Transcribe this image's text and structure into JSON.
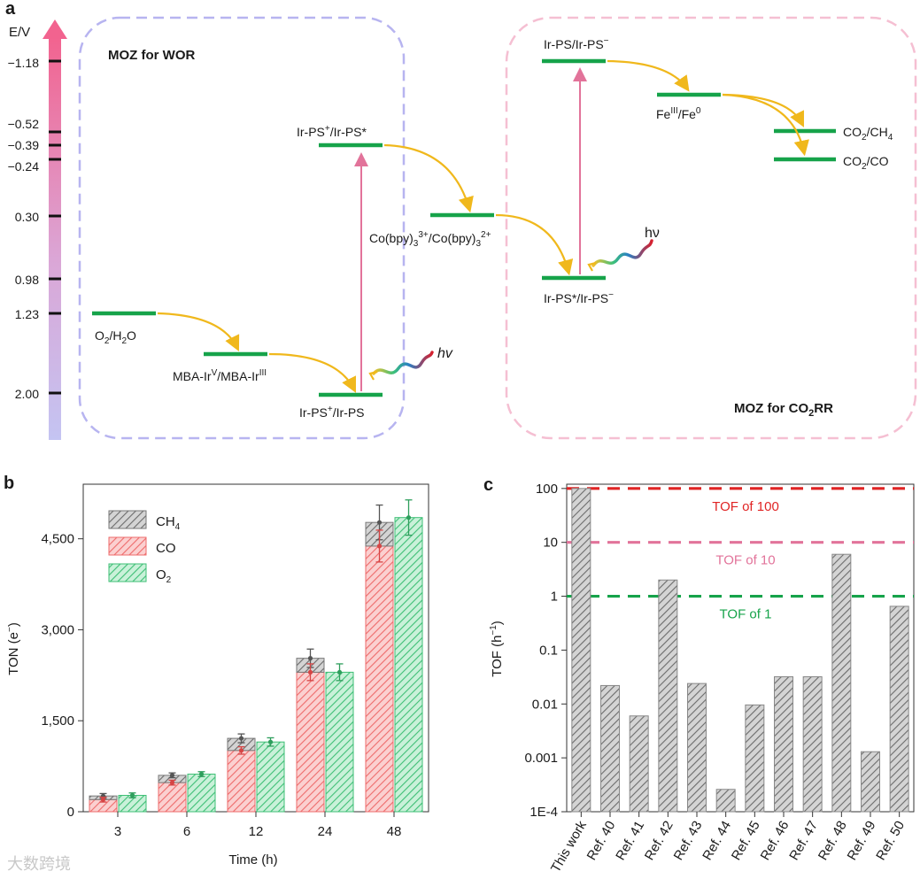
{
  "panel_a": {
    "panel_label": "a",
    "axis_label": "E/V",
    "ticks": [
      "−1.18",
      "−0.52",
      "−0.39",
      "−0.24",
      "0.30",
      "0.98",
      "1.23",
      "2.00"
    ],
    "box_wor_title": "MOZ for WOR",
    "box_co2rr_title": "MOZ for CO",
    "box_co2rr_sub": "2",
    "box_co2rr_tail": "RR",
    "levels": {
      "o2": "O2/H2O",
      "mba": "MBA-IrV/MBA-IrIII",
      "irps_plus_irps": "Ir-PS+/Ir-PS",
      "irps_plus_star": "Ir-PS+/Ir-PS*",
      "cobpy": "Co(bpy)33+/Co(bpy)32+",
      "irps_minus": "Ir-PS/Ir-PS−",
      "fe": "FeIII/Fe0",
      "co2_ch4": "CO2/CH4",
      "co2_co": "CO2/CO",
      "irps_star_minus": "Ir-PS*/Ir-PS−"
    },
    "hv_left": "hv",
    "hv_right": "hν",
    "colors": {
      "level": "#16a34a",
      "arrow": "#f0b81c",
      "excitation": "#e2739a",
      "box_wor": "#b7b4f0",
      "box_co2rr": "#f5bfd2"
    }
  },
  "chart_data": [
    {
      "type": "bar",
      "panel_label": "b",
      "categories": [
        "3",
        "6",
        "12",
        "24",
        "48"
      ],
      "series": [
        {
          "name": "CH4",
          "values": [
            60,
            120,
            200,
            230,
            390
          ],
          "stacked_on": "CO",
          "color": "#a8a8a8"
        },
        {
          "name": "CO",
          "values": [
            200,
            480,
            1010,
            2300,
            4380
          ],
          "color": "#f08080"
        },
        {
          "name": "O2",
          "values": [
            270,
            620,
            1150,
            2300,
            4850
          ],
          "color": "#5fd08f"
        }
      ],
      "legend": [
        {
          "name": "CH",
          "sub": "4"
        },
        {
          "name": "CO",
          "sub": ""
        },
        {
          "name": "O",
          "sub": "2"
        }
      ],
      "xlabel": "Time (h)",
      "ylabel": "TON (e",
      "ylabel_sup": "−",
      "ylabel_tail": ")",
      "yticks": [
        "0",
        "1,500",
        "3,000",
        "4,500"
      ],
      "ytick_values": [
        0,
        1500,
        3000,
        4500
      ],
      "ylim": [
        0,
        5400
      ],
      "legend_position": "top-left",
      "grid": false
    },
    {
      "type": "bar",
      "panel_label": "c",
      "scale": "log",
      "categories": [
        "This work",
        "Ref. 40",
        "Ref. 41",
        "Ref. 42",
        "Ref. 43",
        "Ref. 44",
        "Ref. 45",
        "Ref. 46",
        "Ref. 47",
        "Ref. 48",
        "Ref. 49",
        "Ref. 50"
      ],
      "values": [
        100,
        0.022,
        0.006,
        2.0,
        0.024,
        0.00026,
        0.0096,
        0.032,
        0.032,
        6.0,
        0.0013,
        0.65
      ],
      "ylabel": "TOF (h",
      "ylabel_sup": "−1",
      "ylabel_tail": ")",
      "yticks": [
        "1E-4",
        "0.001",
        "0.01",
        "0.1",
        "1",
        "10",
        "100"
      ],
      "ytick_values": [
        0.0001,
        0.001,
        0.01,
        0.1,
        1,
        10,
        100
      ],
      "ylim": [
        0.0001,
        120
      ],
      "reference_lines": [
        {
          "value": 100,
          "label": "TOF of 100",
          "color": "#e02424"
        },
        {
          "value": 10,
          "label": "TOF of 10",
          "color": "#e2739a"
        },
        {
          "value": 1,
          "label": "TOF of 1",
          "color": "#16a34a"
        }
      ],
      "bar_color": "#a8a8a8",
      "grid": false
    }
  ],
  "watermark": "大数跨境"
}
